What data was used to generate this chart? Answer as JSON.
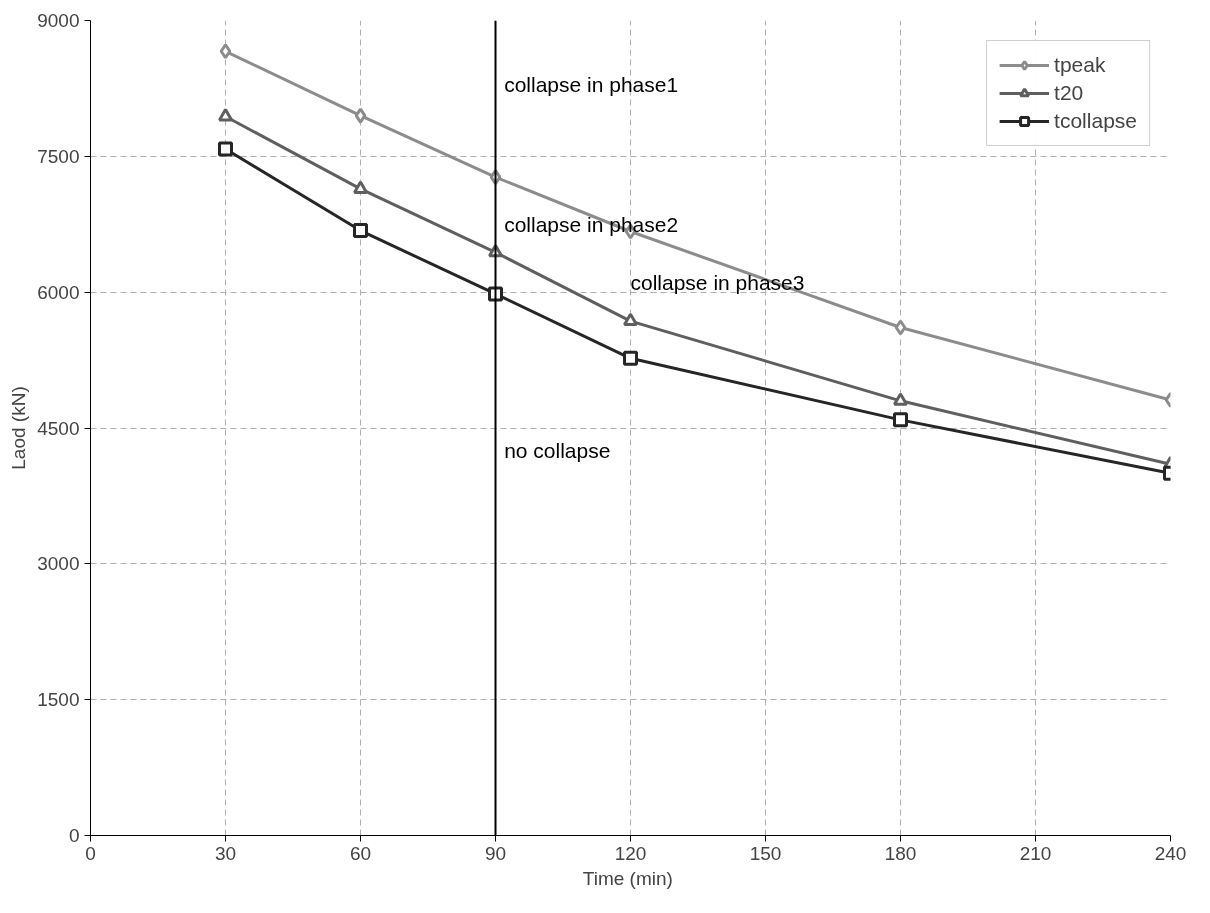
{
  "chart_data": {
    "type": "line",
    "xlabel": "Time  (min)",
    "ylabel": "Laod (kN)",
    "x": [
      30,
      60,
      90,
      120,
      180,
      240
    ],
    "series": [
      {
        "name": "tpeak",
        "color": "#8c8c8c",
        "marker": "diamond",
        "values": [
          8660,
          7950,
          7270,
          6670,
          5610,
          4810
        ]
      },
      {
        "name": "t20",
        "color": "#5f5f5f",
        "marker": "triangle",
        "values": [
          7940,
          7140,
          6440,
          5680,
          4800,
          4100
        ]
      },
      {
        "name": "tcollapse",
        "color": "#262626",
        "marker": "square",
        "values": [
          7580,
          6680,
          5980,
          5270,
          4590,
          4000
        ]
      }
    ],
    "xlim": [
      0,
      240
    ],
    "xticks": [
      0,
      30,
      60,
      90,
      120,
      150,
      180,
      210,
      240
    ],
    "ylim": [
      0,
      9000
    ],
    "yticks": [
      0,
      1500,
      3000,
      4500,
      6000,
      7500,
      9000
    ],
    "ref_lines": [
      {
        "axis": "x",
        "value": 90,
        "color": "#000000"
      }
    ],
    "annotations": [
      "collapse in phase1",
      "collapse in phase2",
      "collapse in phase3",
      "no collapse"
    ],
    "grid": true,
    "legend": "top right",
    "line_style": "solid"
  }
}
